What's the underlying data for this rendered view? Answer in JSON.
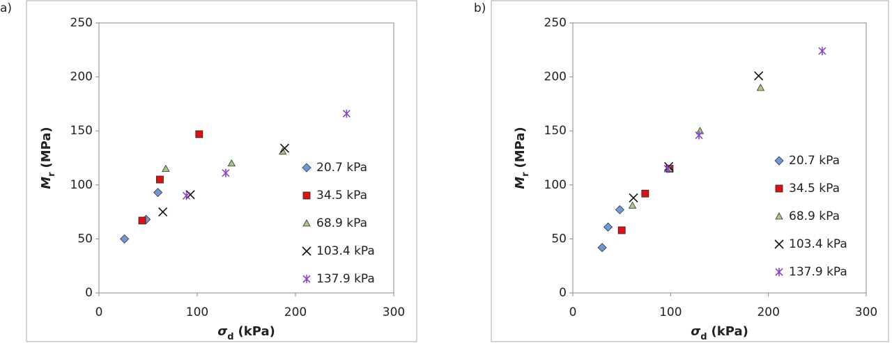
{
  "chart_data": [
    {
      "type": "scatter",
      "panel_label": "a)",
      "xlabel": {
        "symbol": "σ",
        "sub": "d",
        "unit": "(kPa)"
      },
      "ylabel": {
        "symbol": "M",
        "sub": "r",
        "unit": "(MPa)"
      },
      "xlim": [
        0,
        300
      ],
      "xticks": [
        0,
        100,
        200,
        300
      ],
      "ylim": [
        0,
        250
      ],
      "yticks": [
        0,
        50,
        100,
        150,
        200,
        250
      ],
      "legend": "right",
      "series": [
        {
          "name": "20.7 kPa",
          "color": "#6b9ad8",
          "marker": "diamond",
          "x": [
            26,
            48,
            60
          ],
          "values": [
            50,
            68,
            93
          ]
        },
        {
          "name": "34.5 kPa",
          "color": "#e01010",
          "marker": "square",
          "x": [
            44,
            62,
            102
          ],
          "values": [
            67,
            105,
            147
          ]
        },
        {
          "name": "68.9 kPa",
          "color": "#a8c880",
          "marker": "triangle",
          "x": [
            68,
            135,
            187
          ],
          "values": [
            115,
            120,
            131
          ]
        },
        {
          "name": "103.4 kPa",
          "color": "#111111",
          "marker": "x",
          "x": [
            65,
            93,
            189
          ],
          "values": [
            75,
            91,
            134
          ]
        },
        {
          "name": "137.9 kPa",
          "color": "#8a44c8",
          "marker": "star",
          "x": [
            89,
            129,
            252
          ],
          "values": [
            90,
            111,
            166
          ]
        }
      ]
    },
    {
      "type": "scatter",
      "panel_label": "b)",
      "xlabel": {
        "symbol": "σ",
        "sub": "d",
        "unit": "(kPa)"
      },
      "ylabel": {
        "symbol": "M",
        "sub": "r",
        "unit": "(MPa)"
      },
      "xlim": [
        0,
        300
      ],
      "xticks": [
        0,
        100,
        200,
        300
      ],
      "ylim": [
        0,
        250
      ],
      "yticks": [
        0,
        50,
        100,
        150,
        200,
        250
      ],
      "legend": "right",
      "series": [
        {
          "name": "20.7 kPa",
          "color": "#6b9ad8",
          "marker": "diamond",
          "x": [
            30,
            36,
            48
          ],
          "values": [
            42,
            61,
            77
          ]
        },
        {
          "name": "34.5 kPa",
          "color": "#e01010",
          "marker": "square",
          "x": [
            50,
            74,
            99
          ],
          "values": [
            58,
            92,
            115
          ]
        },
        {
          "name": "68.9 kPa",
          "color": "#a8c880",
          "marker": "triangle",
          "x": [
            61,
            99,
            130,
            192
          ],
          "values": [
            81,
            115,
            150,
            190
          ]
        },
        {
          "name": "103.4 kPa",
          "color": "#111111",
          "marker": "x",
          "x": [
            62,
            98,
            190
          ],
          "values": [
            88,
            117,
            201
          ]
        },
        {
          "name": "137.9 kPa",
          "color": "#8a44c8",
          "marker": "star",
          "x": [
            97,
            129,
            255
          ],
          "values": [
            115,
            146,
            224
          ]
        }
      ]
    }
  ]
}
